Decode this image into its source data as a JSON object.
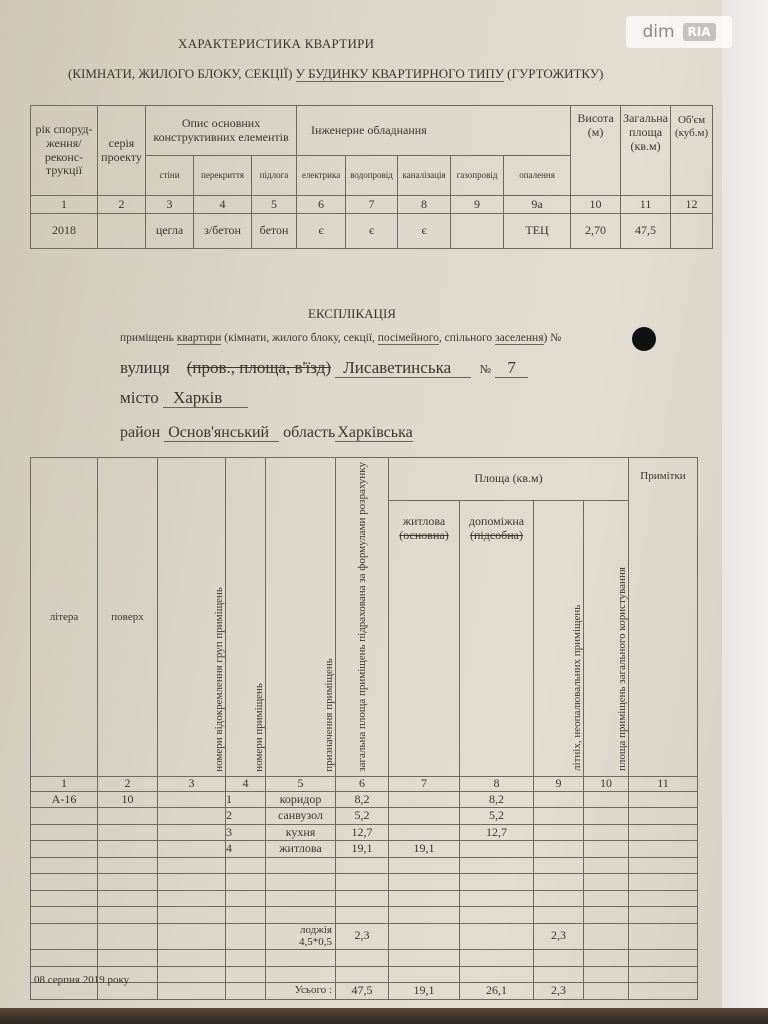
{
  "watermark": {
    "brand": "dim",
    "sub": "RIA"
  },
  "header": {
    "title": "ХАРАКТЕРИСТИКА КВАРТИРИ",
    "subtitle_pre": "(КІМНАТИ, ЖИЛОГО БЛОКУ, СЕКЦІЇ) ",
    "subtitle_mid": "У БУДИНКУ КВАРТИРНОГО ТИПУ",
    "subtitle_post": " (ГУРТОЖИТКУ)"
  },
  "characteristics": {
    "col_year": "рік споруд-ження/ реконс-трукції",
    "col_series": "серія проекту",
    "group_structural": "Опис основних конструктивних елементів",
    "group_engineering": "Інженерне обладнання",
    "col_height": "Висота (м)",
    "col_area": "Загальна площа (кв.м)",
    "col_volume": "Об'єм (куб.м)",
    "sub": [
      "стіни",
      "перекриття",
      "підлога",
      "електрика",
      "водопровід",
      "каналізація",
      "газопровід",
      "опалення"
    ],
    "numbers": [
      "1",
      "2",
      "3",
      "4",
      "5",
      "6",
      "7",
      "8",
      "9",
      "9а",
      "10",
      "11",
      "12"
    ],
    "row": [
      "2018",
      "",
      "цегла",
      "з/бетон",
      "бетон",
      "є",
      "є",
      "є",
      "",
      "ТЕЦ",
      "2,70",
      "47,5",
      ""
    ]
  },
  "explication": {
    "title": "ЕКСПЛІКАЦІЯ",
    "line1_pre": "приміщень ",
    "line1_u1": "квартири",
    "line1_mid": " (кімнати, жилого блоку, секції, ",
    "line1_u2": "посімейного",
    "line1_mid2": ", спільного ",
    "line1_u3": "заселення",
    "line1_post": ") №",
    "street_label": "вулиця",
    "street_struck": "(пров., площа, в'їзд)",
    "street_value": "Лисаветинська",
    "number_label": "№",
    "number_value": "7",
    "city_label": "місто",
    "city_value": "Харків",
    "district_label": "район",
    "district_value": "Основ'янський",
    "region_label": "область",
    "region_value": "Харківська"
  },
  "rooms_table": {
    "col_letter": "літера",
    "col_floor": "поверх",
    "col_groups": "номери відокремлення груп приміщень",
    "col_numbers": "номери приміщень",
    "col_purpose": "призначення приміщень",
    "col_total": "загальна площа приміщень підрахована за формулами розрахунку",
    "group_area": "Площа (кв.м)",
    "col_living": "житлова",
    "col_living_struck": "(основна)",
    "col_aux": "допоміжна",
    "col_aux_struck": "(підсобна)",
    "col_summer": "літніх, неопалювальних приміщень",
    "col_common": "площа приміщень загального користування",
    "col_notes": "Примітки",
    "numbers": [
      "1",
      "2",
      "3",
      "4",
      "5",
      "6",
      "7",
      "8",
      "9",
      "10",
      "11"
    ],
    "rows": [
      [
        "А-16",
        "10",
        "",
        "1",
        "коридор",
        "8,2",
        "",
        "8,2",
        "",
        "",
        ""
      ],
      [
        "",
        "",
        "",
        "2",
        "санвузол",
        "5,2",
        "",
        "5,2",
        "",
        "",
        ""
      ],
      [
        "",
        "",
        "",
        "3",
        "кухня",
        "12,7",
        "",
        "12,7",
        "",
        "",
        ""
      ],
      [
        "",
        "",
        "",
        "4",
        "житлова",
        "19,1",
        "19,1",
        "",
        "",
        "",
        ""
      ],
      [
        "",
        "",
        "",
        "",
        "",
        "",
        "",
        "",
        "",
        "",
        ""
      ],
      [
        "",
        "",
        "",
        "",
        "",
        "",
        "",
        "",
        "",
        "",
        ""
      ],
      [
        "",
        "",
        "",
        "",
        "",
        "",
        "",
        "",
        "",
        "",
        ""
      ],
      [
        "",
        "",
        "",
        "",
        "",
        "",
        "",
        "",
        "",
        "",
        ""
      ],
      [
        "",
        "",
        "",
        "",
        "лоджія 4,5*0,5",
        "2,3",
        "",
        "",
        "2,3",
        "",
        ""
      ],
      [
        "",
        "",
        "",
        "",
        "",
        "",
        "",
        "",
        "",
        "",
        ""
      ],
      [
        "",
        "",
        "",
        "",
        "",
        "",
        "",
        "",
        "",
        "",
        ""
      ],
      [
        "",
        "",
        "",
        "",
        "Усього :",
        "47,5",
        "19,1",
        "26,1",
        "2,3",
        "",
        ""
      ]
    ]
  },
  "footer": {
    "date": "08 серпня 2019 року"
  }
}
